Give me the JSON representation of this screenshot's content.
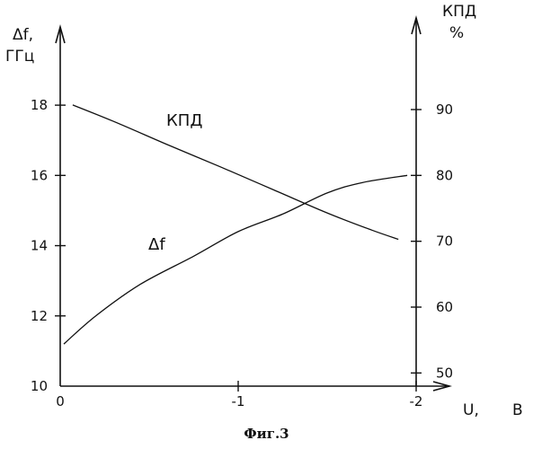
{
  "caption": "Фиг.3",
  "chart_data": {
    "type": "line",
    "x_axis": {
      "label": "U,",
      "unit": "В",
      "range": [
        0,
        -2
      ],
      "ticks": [
        0,
        -1,
        -2
      ],
      "tick_labels": [
        "0",
        "-1",
        "-2"
      ]
    },
    "left_axis": {
      "label": "Δf,",
      "unit": "ГГц",
      "range": [
        10,
        19
      ],
      "ticks": [
        10,
        12,
        14,
        16,
        18
      ],
      "tick_labels": [
        "10",
        "12",
        "14",
        "16",
        "18"
      ]
    },
    "right_axis": {
      "label": "КПД",
      "unit": "%",
      "range": [
        48,
        96
      ],
      "ticks": [
        50,
        60,
        70,
        80,
        90
      ],
      "tick_labels": [
        "50",
        "60",
        "70",
        "80",
        "90"
      ]
    },
    "series": [
      {
        "name": "КПД",
        "axis": "right",
        "x": [
          -0.07,
          -0.3,
          -0.6,
          -0.9,
          -1.2,
          -1.5,
          -1.75,
          -1.9
        ],
        "y": [
          90.7,
          88.2,
          84.7,
          81.3,
          77.8,
          74.3,
          71.7,
          70.3
        ]
      },
      {
        "name": "Δf",
        "axis": "left",
        "x": [
          -0.02,
          -0.2,
          -0.45,
          -0.75,
          -1.0,
          -1.25,
          -1.5,
          -1.7,
          -1.95
        ],
        "y": [
          11.2,
          12.0,
          12.9,
          13.7,
          14.4,
          14.9,
          15.5,
          15.8,
          16.0
        ]
      }
    ]
  }
}
